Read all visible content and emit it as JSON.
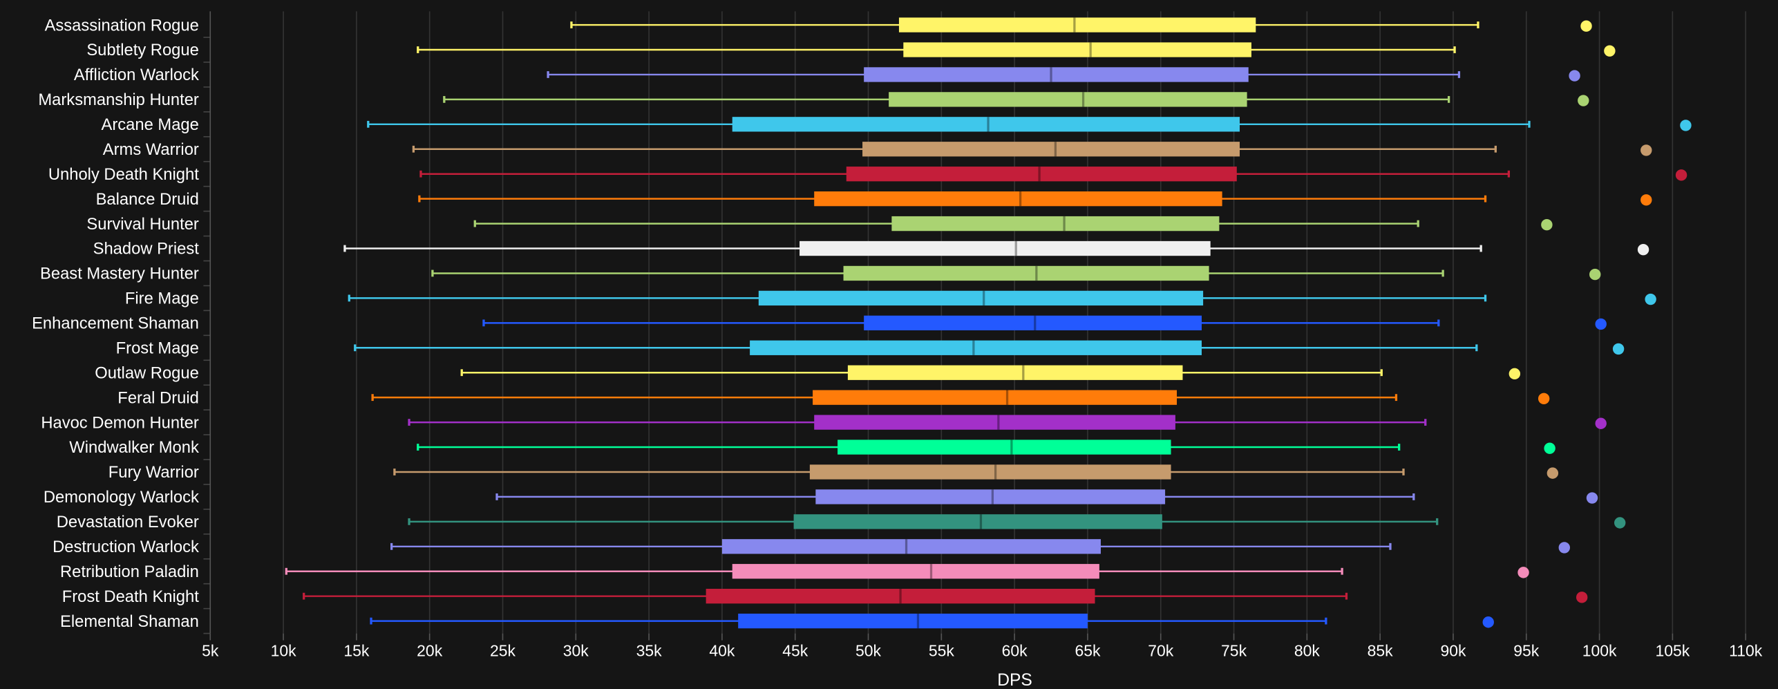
{
  "chart_data": {
    "type": "boxplot",
    "title": "",
    "xlabel": "DPS",
    "ylabel": "",
    "xlim": [
      5000,
      110000
    ],
    "xticks": [
      "5k",
      "10k",
      "15k",
      "20k",
      "25k",
      "30k",
      "35k",
      "40k",
      "45k",
      "50k",
      "55k",
      "60k",
      "65k",
      "70k",
      "75k",
      "80k",
      "85k",
      "90k",
      "95k",
      "100k",
      "105k",
      "110k"
    ],
    "grid": "vertical",
    "series": [
      {
        "name": "Assassination Rogue",
        "color": "#FFF468",
        "min": 29700,
        "q1": 52100,
        "median": 64100,
        "q3": 76500,
        "max": 91700,
        "point": 99100
      },
      {
        "name": "Subtlety Rogue",
        "color": "#FFF468",
        "min": 19200,
        "q1": 52400,
        "median": 65200,
        "q3": 76200,
        "max": 90100,
        "point": 100700
      },
      {
        "name": "Affliction Warlock",
        "color": "#8788EE",
        "min": 28100,
        "q1": 49700,
        "median": 62500,
        "q3": 76000,
        "max": 90400,
        "point": 98300
      },
      {
        "name": "Marksmanship Hunter",
        "color": "#AAD372",
        "min": 21000,
        "q1": 51400,
        "median": 64700,
        "q3": 75900,
        "max": 89700,
        "point": 98900
      },
      {
        "name": "Arcane Mage",
        "color": "#3FC7EB",
        "min": 15800,
        "q1": 40700,
        "median": 58200,
        "q3": 75400,
        "max": 95200,
        "point": 105900
      },
      {
        "name": "Arms Warrior",
        "color": "#C69B6D",
        "min": 18900,
        "q1": 49600,
        "median": 62800,
        "q3": 75400,
        "max": 92900,
        "point": 103200
      },
      {
        "name": "Unholy Death Knight",
        "color": "#C41E3A",
        "min": 19400,
        "q1": 48500,
        "median": 61700,
        "q3": 75200,
        "max": 93800,
        "point": 105600
      },
      {
        "name": "Balance Druid",
        "color": "#FF7C0A",
        "min": 19300,
        "q1": 46300,
        "median": 60400,
        "q3": 74200,
        "max": 92200,
        "point": 103200
      },
      {
        "name": "Survival Hunter",
        "color": "#AAD372",
        "min": 23100,
        "q1": 51600,
        "median": 63400,
        "q3": 74000,
        "max": 87600,
        "point": 96400
      },
      {
        "name": "Shadow Priest",
        "color": "#F0F0F0",
        "min": 14200,
        "q1": 45300,
        "median": 60100,
        "q3": 73400,
        "max": 91900,
        "point": 103000
      },
      {
        "name": "Beast Mastery Hunter",
        "color": "#AAD372",
        "min": 20200,
        "q1": 48300,
        "median": 61500,
        "q3": 73300,
        "max": 89300,
        "point": 99700
      },
      {
        "name": "Fire Mage",
        "color": "#3FC7EB",
        "min": 14500,
        "q1": 42500,
        "median": 57900,
        "q3": 72900,
        "max": 92200,
        "point": 103500
      },
      {
        "name": "Enhancement Shaman",
        "color": "#2459FF",
        "min": 23700,
        "q1": 49700,
        "median": 61400,
        "q3": 72800,
        "max": 89000,
        "point": 100100
      },
      {
        "name": "Frost Mage",
        "color": "#3FC7EB",
        "min": 14900,
        "q1": 41900,
        "median": 57200,
        "q3": 72800,
        "max": 91600,
        "point": 101300
      },
      {
        "name": "Outlaw Rogue",
        "color": "#FFF468",
        "min": 22200,
        "q1": 48600,
        "median": 60600,
        "q3": 71500,
        "max": 85100,
        "point": 94200
      },
      {
        "name": "Feral Druid",
        "color": "#FF7C0A",
        "min": 16100,
        "q1": 46200,
        "median": 59500,
        "q3": 71100,
        "max": 86100,
        "point": 96200
      },
      {
        "name": "Havoc Demon Hunter",
        "color": "#A330C9",
        "min": 18600,
        "q1": 46300,
        "median": 58900,
        "q3": 71000,
        "max": 88100,
        "point": 100100
      },
      {
        "name": "Windwalker Monk",
        "color": "#00FF98",
        "min": 19200,
        "q1": 47900,
        "median": 59800,
        "q3": 70700,
        "max": 86300,
        "point": 96600
      },
      {
        "name": "Fury Warrior",
        "color": "#C69B6D",
        "min": 17600,
        "q1": 46000,
        "median": 58700,
        "q3": 70700,
        "max": 86600,
        "point": 96800
      },
      {
        "name": "Demonology Warlock",
        "color": "#8788EE",
        "min": 24600,
        "q1": 46400,
        "median": 58500,
        "q3": 70300,
        "max": 87300,
        "point": 99500
      },
      {
        "name": "Devastation Evoker",
        "color": "#33937F",
        "min": 18600,
        "q1": 44900,
        "median": 57700,
        "q3": 70100,
        "max": 88900,
        "point": 101400
      },
      {
        "name": "Destruction Warlock",
        "color": "#8788EE",
        "min": 17400,
        "q1": 40000,
        "median": 52600,
        "q3": 65900,
        "max": 85700,
        "point": 97600
      },
      {
        "name": "Retribution Paladin",
        "color": "#F48CBA",
        "min": 10200,
        "q1": 40700,
        "median": 54300,
        "q3": 65800,
        "max": 82400,
        "point": 94800
      },
      {
        "name": "Frost Death Knight",
        "color": "#C41E3A",
        "min": 11400,
        "q1": 38900,
        "median": 52200,
        "q3": 65500,
        "max": 82700,
        "point": 98800
      },
      {
        "name": "Elemental Shaman",
        "color": "#2459FF",
        "min": 16000,
        "q1": 41100,
        "median": 53400,
        "q3": 65000,
        "max": 81300,
        "point": 92400
      }
    ]
  }
}
